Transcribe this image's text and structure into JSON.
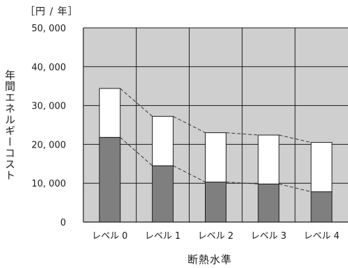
{
  "chart_data": {
    "type": "bar",
    "stacked": true,
    "unit": "［円 / 年］",
    "ylabel": "年間エネルギーコスト",
    "xlabel": "断熱水準",
    "categories": [
      "レベル 0",
      "レベル 1",
      "レベル 2",
      "レベル 3",
      "レベル 4"
    ],
    "y_ticks": [
      "0",
      "10, 000",
      "20, 000",
      "30, 000",
      "40, 000",
      "50, 000"
    ],
    "ylim": [
      0,
      50000
    ],
    "grid": true,
    "series": [
      {
        "values": [
          21800,
          14500,
          10300,
          9800,
          7800
        ],
        "color": "#7f7f7f"
      },
      {
        "values": [
          12600,
          12700,
          12700,
          12600,
          12700
        ],
        "color": "#ffffff"
      }
    ],
    "plot_background": "#cfcfcf",
    "connector_style": "dashed"
  }
}
